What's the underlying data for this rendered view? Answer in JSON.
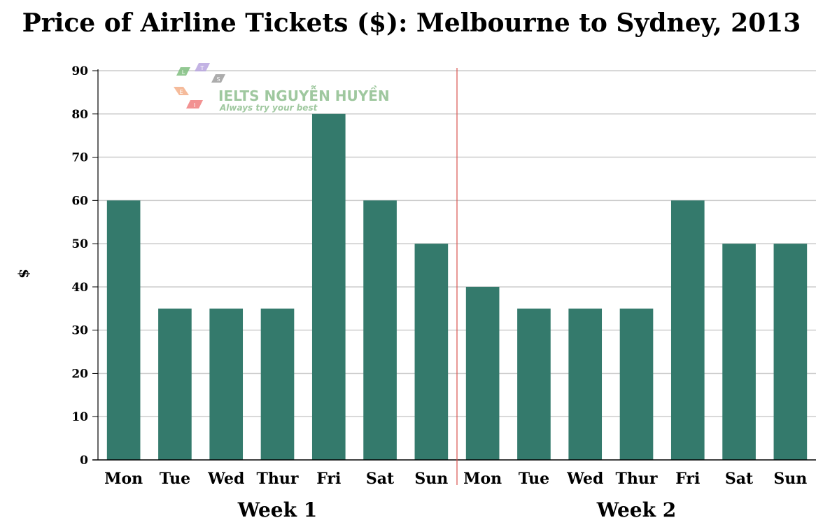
{
  "chart_data": {
    "type": "bar",
    "title": "Price of Airline Tickets ($): Melbourne to Sydney, 2013",
    "ylabel": "$",
    "xlabel": "",
    "ylim": [
      0,
      90
    ],
    "yticks": [
      0,
      10,
      20,
      30,
      40,
      50,
      60,
      70,
      80,
      90
    ],
    "grid": true,
    "groups": [
      {
        "name": "Week 1",
        "categories": [
          "Mon",
          "Tue",
          "Wed",
          "Thur",
          "Fri",
          "Sat",
          "Sun"
        ],
        "values": [
          60,
          35,
          35,
          35,
          80,
          60,
          50
        ]
      },
      {
        "name": "Week 2",
        "categories": [
          "Mon",
          "Tue",
          "Wed",
          "Thur",
          "Fri",
          "Sat",
          "Sun"
        ],
        "values": [
          40,
          35,
          35,
          35,
          60,
          50,
          50
        ]
      }
    ],
    "colors": {
      "bar": "#347a6c",
      "divider": "#d9534f",
      "grid": "#cccccc",
      "axis": "#000000"
    }
  },
  "watermark": {
    "brand": "IELTS NGUYỄN HUYỀN",
    "tagline": "Always try your best",
    "letters": [
      "L",
      "T",
      "S",
      "E",
      "I"
    ]
  }
}
